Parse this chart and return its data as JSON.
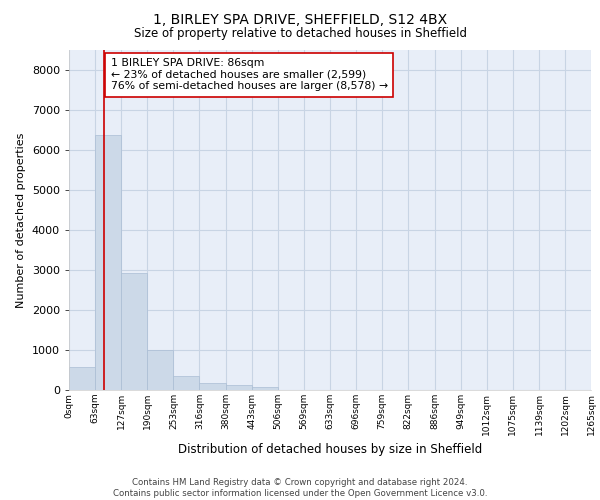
{
  "title_line1": "1, BIRLEY SPA DRIVE, SHEFFIELD, S12 4BX",
  "title_line2": "Size of property relative to detached houses in Sheffield",
  "xlabel": "Distribution of detached houses by size in Sheffield",
  "ylabel": "Number of detached properties",
  "bar_edges": [
    0,
    63,
    127,
    190,
    253,
    316,
    380,
    443,
    506,
    569,
    633,
    696,
    759,
    822,
    886,
    949,
    1012,
    1075,
    1139,
    1202,
    1265
  ],
  "bar_heights": [
    570,
    6380,
    2920,
    990,
    360,
    175,
    130,
    85,
    0,
    0,
    0,
    0,
    0,
    0,
    0,
    0,
    0,
    0,
    0,
    0
  ],
  "bar_color": "#ccd9e8",
  "bar_edgecolor": "#aabdd4",
  "property_value": 86,
  "vline_color": "#cc0000",
  "annotation_text": "1 BIRLEY SPA DRIVE: 86sqm\n← 23% of detached houses are smaller (2,599)\n76% of semi-detached houses are larger (8,578) →",
  "annotation_box_edgecolor": "#cc0000",
  "annotation_box_facecolor": "#ffffff",
  "ylim": [
    0,
    8500
  ],
  "yticks": [
    0,
    1000,
    2000,
    3000,
    4000,
    5000,
    6000,
    7000,
    8000
  ],
  "grid_color": "#c8d4e4",
  "background_color": "#e8eef8",
  "footer_text": "Contains HM Land Registry data © Crown copyright and database right 2024.\nContains public sector information licensed under the Open Government Licence v3.0.",
  "tick_labels": [
    "0sqm",
    "63sqm",
    "127sqm",
    "190sqm",
    "253sqm",
    "316sqm",
    "380sqm",
    "443sqm",
    "506sqm",
    "569sqm",
    "633sqm",
    "696sqm",
    "759sqm",
    "822sqm",
    "886sqm",
    "949sqm",
    "1012sqm",
    "1075sqm",
    "1139sqm",
    "1202sqm",
    "1265sqm"
  ]
}
